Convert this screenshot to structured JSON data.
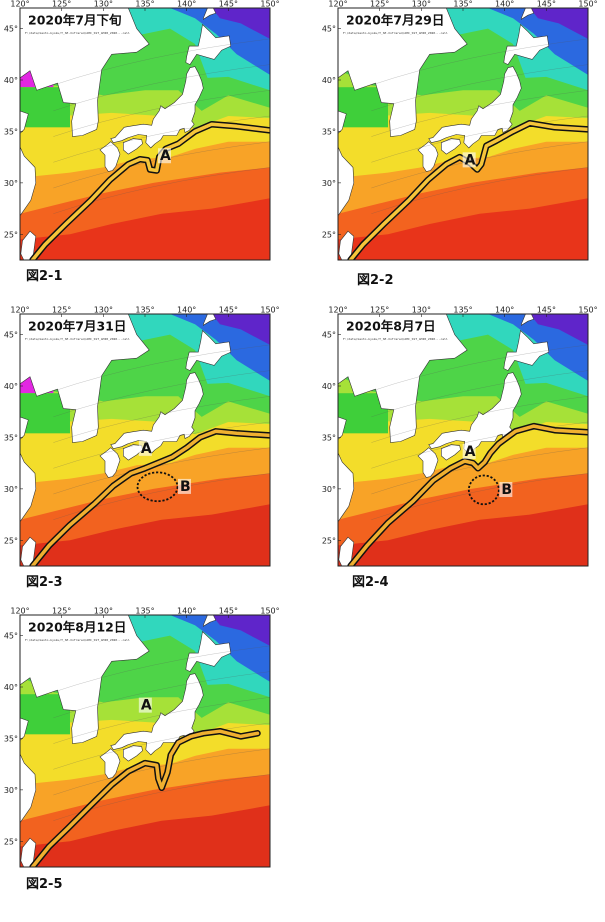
{
  "figure": {
    "lon_ticks": [
      "120°",
      "125°",
      "130°",
      "135°",
      "140°",
      "145°",
      "150°"
    ],
    "lat_ticks": [
      "45°",
      "40°",
      "35°",
      "30°",
      "25°"
    ],
    "file_text": "F:/data/kanto-kyoku/T_SE-Infrared/AHI_SST_AHI8_2020...cell",
    "colors": {
      "warm": "#e8341a",
      "orange": "#f9822a",
      "yellow": "#f2e22a",
      "green": "#46d24a",
      "cyan": "#2fd7c8",
      "blue": "#2a5fe3",
      "magenta": "#e227e2",
      "land": "#ffffff"
    }
  },
  "panels": [
    {
      "title": "2020年7月下旬",
      "caption": "図2-1",
      "labels": [
        "A"
      ]
    },
    {
      "title": "2020年7月29日",
      "caption": "図2-2",
      "labels": [
        "A"
      ]
    },
    {
      "title": "2020年7月31日",
      "caption": "図2-3",
      "labels": [
        "A",
        "B"
      ]
    },
    {
      "title": "2020年8月7日",
      "caption": "図2-4",
      "labels": [
        "A",
        "B"
      ]
    },
    {
      "title": "2020年8月12日",
      "caption": "図2-5",
      "labels": [
        "A"
      ]
    }
  ]
}
